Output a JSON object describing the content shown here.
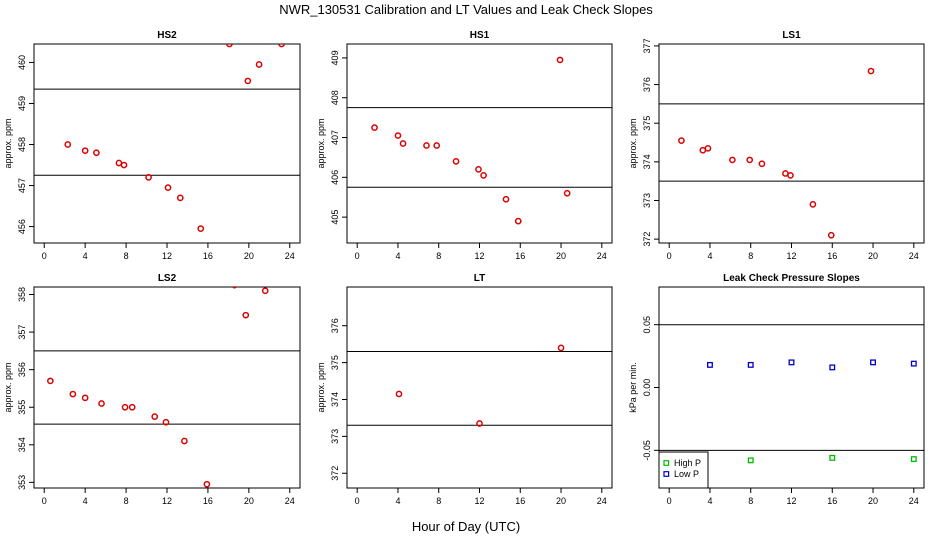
{
  "figure": {
    "title": "NWR_130531  Calibration and LT Values and Leak Check Slopes",
    "xlabel": "Hour of Day (UTC)"
  },
  "chart_data": [
    {
      "type": "scatter",
      "title": "HS2",
      "ylabel": "approx. ppm",
      "xlim": [
        -1,
        25
      ],
      "ylim": [
        455.6,
        460.45
      ],
      "xticks": [
        0,
        4,
        8,
        12,
        16,
        20,
        24
      ],
      "yticks": [
        456,
        457,
        458,
        459,
        460
      ],
      "hlines": [
        459.35,
        457.25
      ],
      "series": [
        {
          "color": "#dd0000",
          "shape": "circle",
          "x": [
            2.3,
            4.0,
            5.1,
            7.3,
            7.8,
            10.2,
            12.1,
            13.3,
            15.3,
            18.1,
            19.9,
            21.0,
            23.2
          ],
          "y": [
            458.0,
            457.85,
            457.8,
            457.55,
            457.5,
            457.2,
            456.95,
            456.7,
            455.95,
            460.45,
            459.55,
            459.95,
            460.45
          ]
        }
      ]
    },
    {
      "type": "scatter",
      "title": "HS1",
      "ylabel": "approx. ppm",
      "xlim": [
        -1,
        25
      ],
      "ylim": [
        404.35,
        409.35
      ],
      "xticks": [
        0,
        4,
        8,
        12,
        16,
        20,
        24
      ],
      "yticks": [
        405,
        406,
        407,
        408,
        409
      ],
      "hlines": [
        407.75,
        405.75
      ],
      "series": [
        {
          "color": "#dd0000",
          "shape": "circle",
          "x": [
            1.7,
            4.0,
            4.5,
            6.8,
            7.8,
            9.7,
            11.9,
            12.4,
            14.6,
            15.8,
            19.9,
            20.6
          ],
          "y": [
            407.25,
            407.05,
            406.85,
            406.8,
            406.8,
            406.4,
            406.2,
            406.05,
            405.45,
            404.9,
            408.95,
            405.6
          ]
        }
      ]
    },
    {
      "type": "scatter",
      "title": "LS1",
      "ylabel": "approx. ppm",
      "xlim": [
        -1,
        25
      ],
      "ylim": [
        371.9,
        377.05
      ],
      "xticks": [
        0,
        4,
        8,
        12,
        16,
        20,
        24
      ],
      "yticks": [
        372,
        373,
        374,
        375,
        376,
        377
      ],
      "hlines": [
        375.5,
        373.5
      ],
      "series": [
        {
          "color": "#dd0000",
          "shape": "circle",
          "x": [
            1.2,
            3.3,
            3.8,
            6.2,
            7.9,
            9.1,
            11.4,
            11.9,
            14.1,
            15.9,
            19.8
          ],
          "y": [
            374.55,
            374.3,
            374.35,
            374.05,
            374.05,
            373.95,
            373.7,
            373.65,
            372.9,
            372.1,
            376.35
          ]
        }
      ]
    },
    {
      "type": "scatter",
      "title": "LS2",
      "ylabel": "approx. ppm",
      "xlim": [
        -1,
        25
      ],
      "ylim": [
        352.85,
        358.2
      ],
      "xticks": [
        0,
        4,
        8,
        12,
        16,
        20,
        24
      ],
      "yticks": [
        353,
        354,
        355,
        356,
        357,
        358
      ],
      "hlines": [
        356.5,
        354.55
      ],
      "series": [
        {
          "color": "#dd0000",
          "shape": "circle",
          "x": [
            0.6,
            2.8,
            4.0,
            5.6,
            7.9,
            8.6,
            10.8,
            11.9,
            13.7,
            15.9,
            18.6,
            19.7,
            21.6
          ],
          "y": [
            355.7,
            355.35,
            355.25,
            355.1,
            355.0,
            355.0,
            354.75,
            354.6,
            354.1,
            352.95,
            358.25,
            357.45,
            358.1
          ]
        }
      ]
    },
    {
      "type": "scatter",
      "title": "LT",
      "ylabel": "approx. ppm",
      "xlim": [
        -1,
        25
      ],
      "ylim": [
        371.6,
        377.05
      ],
      "xticks": [
        0,
        4,
        8,
        12,
        16,
        20,
        24
      ],
      "yticks": [
        372,
        373,
        374,
        375,
        376
      ],
      "hlines": [
        375.3,
        373.3
      ],
      "series": [
        {
          "color": "#dd0000",
          "shape": "circle",
          "x": [
            4.1,
            12.0,
            20.0
          ],
          "y": [
            374.15,
            373.35,
            375.4
          ]
        }
      ]
    },
    {
      "type": "scatter",
      "title": "Leak Check Pressure Slopes",
      "ylabel": "kPa per min.",
      "xlim": [
        -1,
        25
      ],
      "ylim": [
        -0.08,
        0.08
      ],
      "xticks": [
        0,
        4,
        8,
        12,
        16,
        20,
        24
      ],
      "yticks": [
        -0.05,
        0.0,
        0.05
      ],
      "ytick_labels": [
        "-0.05",
        "0.00",
        "0.05"
      ],
      "hlines": [
        0.05,
        -0.05
      ],
      "legend": {
        "position": "bottom-left"
      },
      "series": [
        {
          "name": "High P",
          "color": "#00bb00",
          "shape": "square",
          "x": [
            8,
            16,
            24
          ],
          "y": [
            -0.058,
            -0.056,
            -0.057
          ]
        },
        {
          "name": "Low P",
          "color": "#0000cc",
          "shape": "square",
          "x": [
            4,
            8,
            12,
            16,
            20,
            24
          ],
          "y": [
            0.018,
            0.018,
            0.02,
            0.016,
            0.02,
            0.019
          ]
        }
      ]
    }
  ]
}
